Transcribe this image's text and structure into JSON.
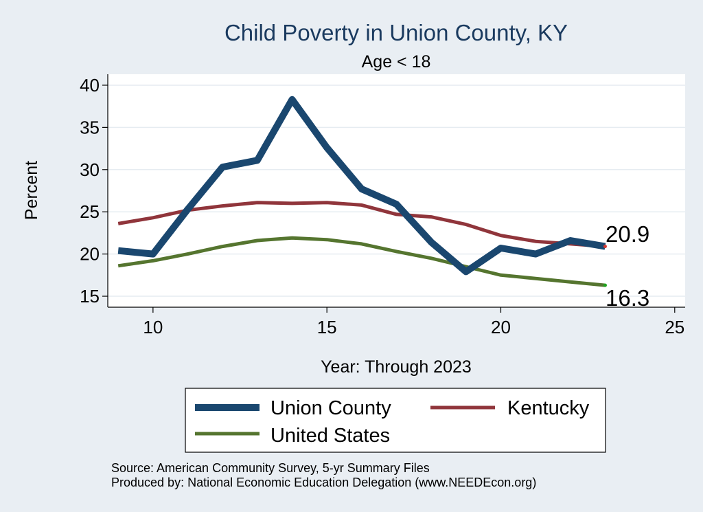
{
  "chart_data": {
    "type": "line",
    "title": "Child Poverty in Union County, KY",
    "subtitle": "Age < 18",
    "xlabel": "Year: Through 2023",
    "ylabel": "Percent",
    "xlim": [
      8.7,
      25.3
    ],
    "ylim": [
      13.7,
      41.3
    ],
    "xticks": [
      10,
      15,
      20,
      25
    ],
    "yticks": [
      15,
      20,
      25,
      30,
      35,
      40
    ],
    "grid": true,
    "legend_position": "bottom",
    "series": [
      {
        "name": "Union County",
        "color": "#1a476f",
        "x": [
          9,
          10,
          11,
          12,
          13,
          14,
          15,
          16,
          17,
          18,
          19,
          20,
          21,
          22,
          23
        ],
        "values": [
          20.4,
          20.0,
          25.3,
          30.3,
          31.1,
          38.3,
          32.6,
          27.7,
          25.9,
          21.4,
          17.9,
          20.7,
          20.0,
          21.6,
          20.9
        ]
      },
      {
        "name": "Kentucky",
        "color": "#90353b",
        "x": [
          9,
          10,
          11,
          12,
          13,
          14,
          15,
          16,
          17,
          18,
          19,
          20,
          21,
          22,
          23
        ],
        "values": [
          23.6,
          24.3,
          25.2,
          25.7,
          26.1,
          26.0,
          26.1,
          25.8,
          24.7,
          24.4,
          23.5,
          22.2,
          21.5,
          21.2,
          20.9
        ]
      },
      {
        "name": "United States",
        "color": "#55752f",
        "x": [
          9,
          10,
          11,
          12,
          13,
          14,
          15,
          16,
          17,
          18,
          19,
          20,
          21,
          22,
          23
        ],
        "values": [
          18.6,
          19.2,
          20.0,
          20.9,
          21.6,
          21.9,
          21.7,
          21.2,
          20.3,
          19.5,
          18.5,
          17.5,
          17.1,
          16.7,
          16.3
        ]
      }
    ],
    "end_labels": [
      "20.9",
      "16.3"
    ],
    "notes": [
      "Source: American Community Survey, 5-yr Summary Files",
      "Produced by: National Economic Education Delegation (www.NEEDEcon.org)"
    ]
  }
}
